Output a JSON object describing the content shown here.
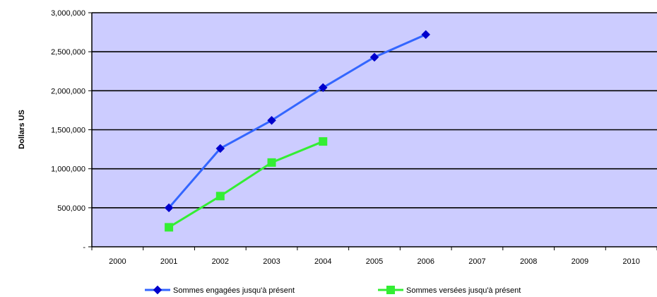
{
  "chart_data": {
    "type": "line",
    "title": "",
    "ylabel": "Dollars US",
    "xlabel": "",
    "categories": [
      "2000",
      "2001",
      "2002",
      "2003",
      "2004",
      "2005",
      "2006",
      "2007",
      "2008",
      "2009",
      "2010"
    ],
    "ylim": [
      0,
      3000000
    ],
    "yticks": [
      {
        "value": 0,
        "label": "-"
      },
      {
        "value": 500000,
        "label": "500,000"
      },
      {
        "value": 1000000,
        "label": "1,000,000"
      },
      {
        "value": 1500000,
        "label": "1,500,000"
      },
      {
        "value": 2000000,
        "label": "2,000,000"
      },
      {
        "value": 2500000,
        "label": "2,500,000"
      },
      {
        "value": 3000000,
        "label": "3,000,000"
      }
    ],
    "grid": true,
    "plot_background": "#ccccff",
    "legend_position": "bottom",
    "series": [
      {
        "name": "Sommes engagées jusqu'à présent",
        "color": "#3366ff",
        "marker_color": "#0000cc",
        "marker": "diamond",
        "points": [
          {
            "x": "2001",
            "y": 500000
          },
          {
            "x": "2002",
            "y": 1260000
          },
          {
            "x": "2003",
            "y": 1620000
          },
          {
            "x": "2004",
            "y": 2040000
          },
          {
            "x": "2005",
            "y": 2430000
          },
          {
            "x": "2006",
            "y": 2720000
          }
        ]
      },
      {
        "name": "Sommes versées jusqu'à présent",
        "color": "#33ee33",
        "marker_color": "#33ee33",
        "marker": "square",
        "points": [
          {
            "x": "2001",
            "y": 250000
          },
          {
            "x": "2002",
            "y": 650000
          },
          {
            "x": "2003",
            "y": 1080000
          },
          {
            "x": "2004",
            "y": 1350000
          }
        ]
      }
    ]
  }
}
